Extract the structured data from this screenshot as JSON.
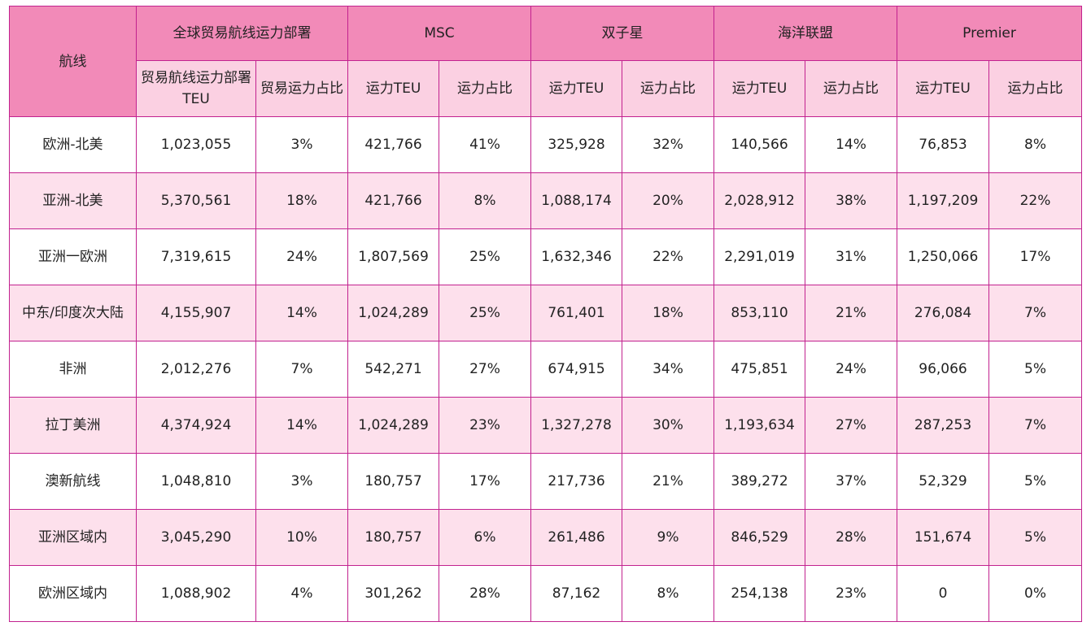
{
  "table": {
    "route_header": "航线",
    "groups": [
      {
        "title": "全球贸易航线运力部署",
        "sub": [
          "贸易航线运力部署TEU",
          "贸易运力占比"
        ]
      },
      {
        "title": "MSC",
        "sub": [
          "运力TEU",
          "运力占比"
        ]
      },
      {
        "title": "双子星",
        "sub": [
          "运力TEU",
          "运力占比"
        ]
      },
      {
        "title": "海洋联盟",
        "sub": [
          "运力TEU",
          "运力占比"
        ]
      },
      {
        "title": "Premier",
        "sub": [
          "运力TEU",
          "运力占比"
        ]
      }
    ],
    "rows": [
      [
        "欧洲-北美",
        "1,023,055",
        "3%",
        "421,766",
        "41%",
        "325,928",
        "32%",
        "140,566",
        "14%",
        "76,853",
        "8%"
      ],
      [
        "亚洲-北美",
        "5,370,561",
        "18%",
        "421,766",
        "8%",
        "1,088,174",
        "20%",
        "2,028,912",
        "38%",
        "1,197,209",
        "22%"
      ],
      [
        "亚洲一欧洲",
        "7,319,615",
        "24%",
        "1,807,569",
        "25%",
        "1,632,346",
        "22%",
        "2,291,019",
        "31%",
        "1,250,066",
        "17%"
      ],
      [
        "中东/印度次大陆",
        "4,155,907",
        "14%",
        "1,024,289",
        "25%",
        "761,401",
        "18%",
        "853,110",
        "21%",
        "276,084",
        "7%"
      ],
      [
        "非洲",
        "2,012,276",
        "7%",
        "542,271",
        "27%",
        "674,915",
        "34%",
        "475,851",
        "24%",
        "96,066",
        "5%"
      ],
      [
        "拉丁美洲",
        "4,374,924",
        "14%",
        "1,024,289",
        "23%",
        "1,327,278",
        "30%",
        "1,193,634",
        "27%",
        "287,253",
        "7%"
      ],
      [
        "澳新航线",
        "1,048,810",
        "3%",
        "180,757",
        "17%",
        "217,736",
        "21%",
        "389,272",
        "37%",
        "52,329",
        "5%"
      ],
      [
        "亚洲区域内",
        "3,045,290",
        "10%",
        "180,757",
        "6%",
        "261,486",
        "9%",
        "846,529",
        "28%",
        "151,674",
        "5%"
      ],
      [
        "欧洲区域内",
        "1,088,902",
        "4%",
        "301,262",
        "28%",
        "87,162",
        "8%",
        "254,138",
        "23%",
        "0",
        "0%"
      ]
    ]
  },
  "colors": {
    "header_dark": "#f28ab8",
    "header_light": "#fbd0e2",
    "row_alt": "#fde0ec",
    "border": "#c2228f"
  }
}
